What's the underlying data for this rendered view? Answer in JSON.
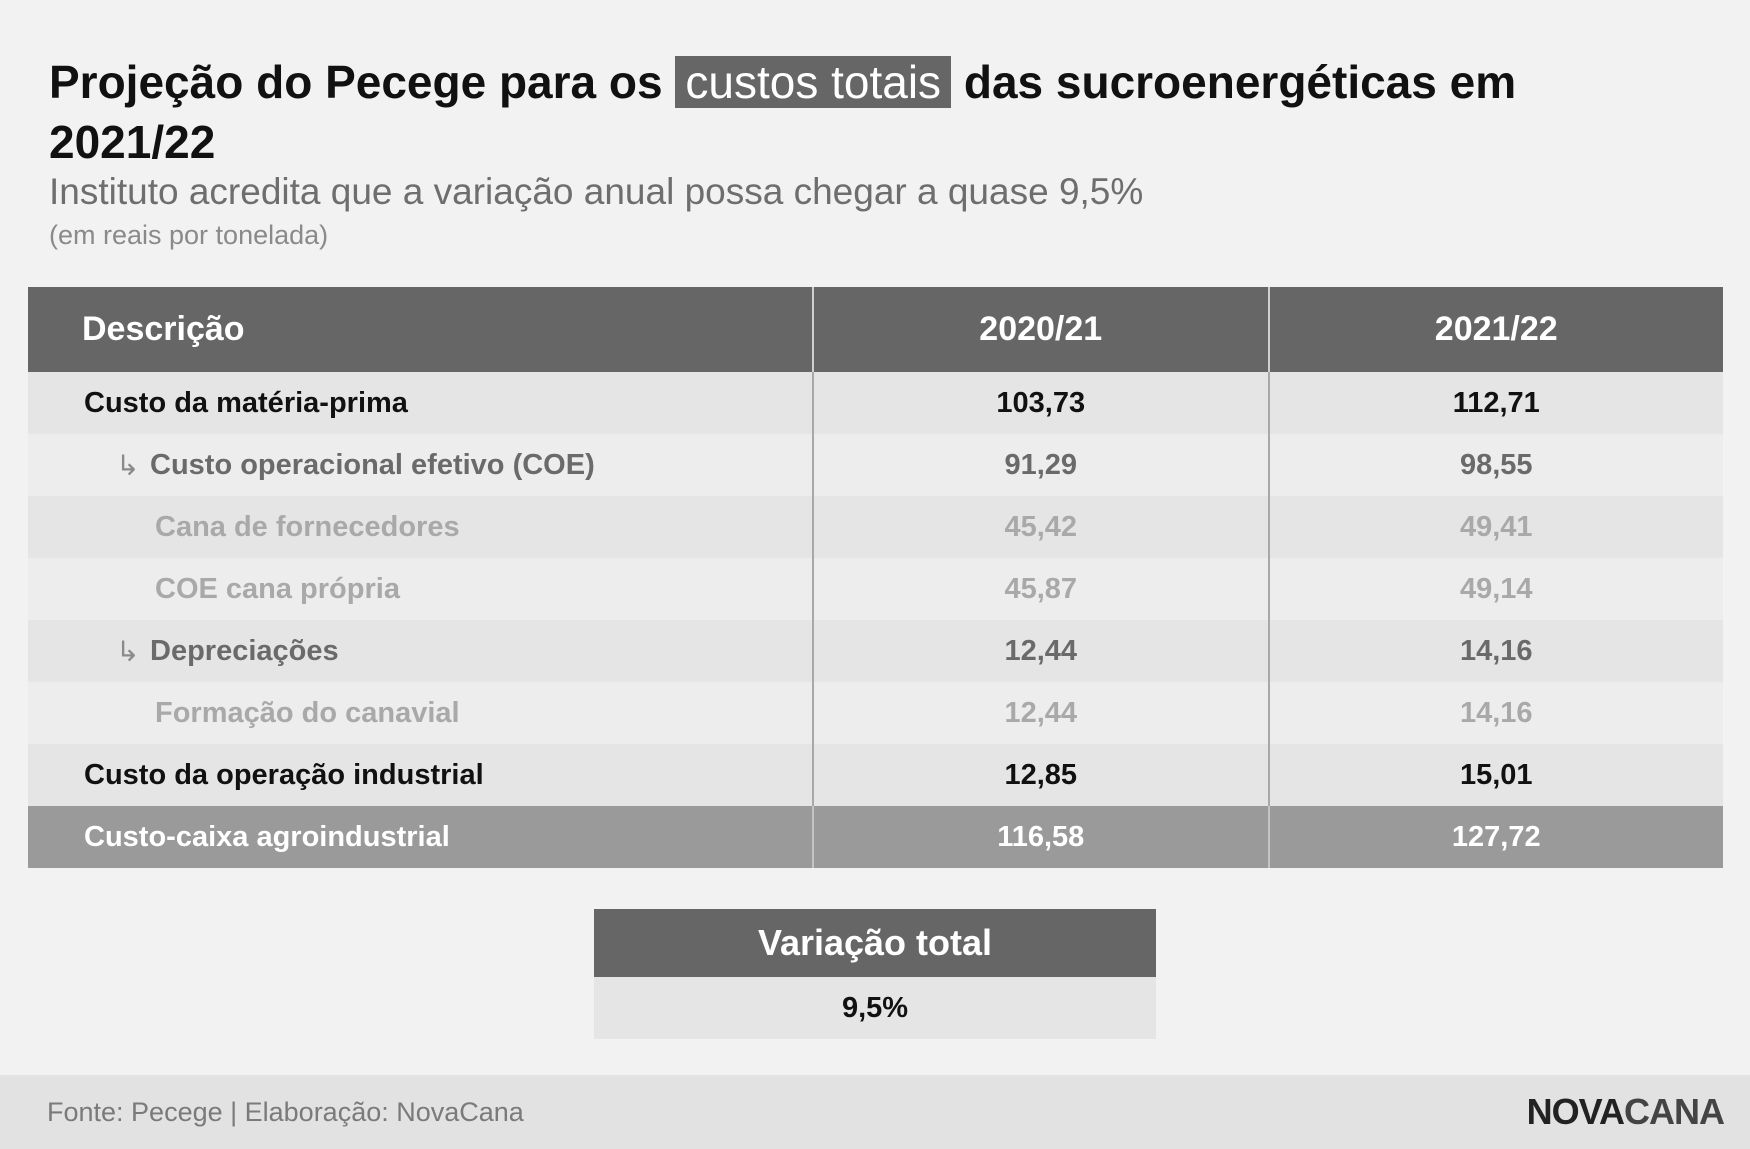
{
  "header": {
    "title_pre": "Projeção do Pecege para os ",
    "title_highlight": "custos totais",
    "title_post": " das sucroenergéticas em 2021/22",
    "subtitle": "Instituto acredita que a variação anual possa chegar a quase 9,5%",
    "unit": "(em reais por tonelada)"
  },
  "chart_data": {
    "type": "table",
    "columns": [
      "Descrição",
      "2020/21",
      "2021/22"
    ],
    "rows": [
      {
        "label": "Custo da matéria-prima",
        "level": 0,
        "values": [
          "103,73",
          "112,71"
        ]
      },
      {
        "label": "Custo operacional efetivo (COE)",
        "level": 1,
        "values": [
          "91,29",
          "98,55"
        ]
      },
      {
        "label": "Cana de fornecedores",
        "level": 2,
        "values": [
          "45,42",
          "49,41"
        ]
      },
      {
        "label": "COE cana própria",
        "level": 2,
        "values": [
          "45,87",
          "49,14"
        ]
      },
      {
        "label": "Depreciações",
        "level": 1,
        "values": [
          "12,44",
          "14,16"
        ]
      },
      {
        "label": "Formação do canavial",
        "level": 2,
        "values": [
          "12,44",
          "14,16"
        ]
      },
      {
        "label": "Custo da operação industrial",
        "level": 0,
        "values": [
          "12,85",
          "15,01"
        ]
      },
      {
        "label": "Custo-caixa agroindustrial",
        "level": "total",
        "values": [
          "116,58",
          "127,72"
        ]
      }
    ],
    "summary": {
      "label": "Variação total",
      "value": "9,5%"
    }
  },
  "footer": {
    "source": "Fonte: Pecege | Elaboração: NovaCana",
    "logo_part1": "NOVA",
    "logo_part2": "CANA"
  }
}
